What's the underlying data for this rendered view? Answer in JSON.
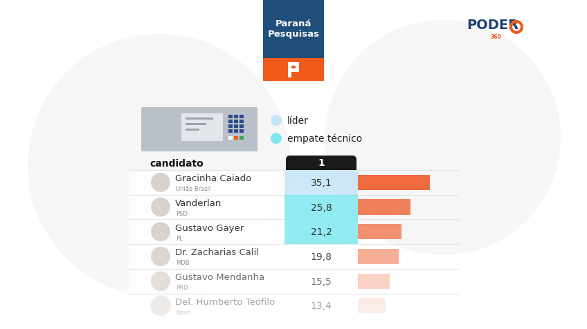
{
  "chart_data": {
    "type": "bar",
    "orientation": "horizontal",
    "title": "Paraná Pesquisas",
    "brand": "PODER",
    "brand_sub": "360",
    "column_header": "candidato",
    "round_label": "1",
    "categories": [
      "Gracinha Caiado",
      "Vanderlan",
      "Gustavo Gayer",
      "Dr. Zacharias Calil",
      "Gustavo Mendanha",
      "Del. Humberto Teófilo"
    ],
    "parties": [
      "União Brasil",
      "PSD",
      "PL",
      "MDB",
      "PRD",
      "Novo"
    ],
    "values": [
      35.1,
      25.8,
      21.2,
      19.8,
      15.5,
      13.4
    ],
    "value_labels": [
      "35,1",
      "25,8",
      "21,2",
      "19,8",
      "15,5",
      "13,4"
    ],
    "data_labels": true,
    "colors": [
      "#ef6a3e",
      "#f0805a",
      "#f29070",
      "#f4a68c",
      "#f7bfad",
      "#fad6ca"
    ],
    "legend_entries": [
      {
        "name": "líder",
        "color": "#c5e4f7"
      },
      {
        "name": "empate técnico",
        "color": "#7ee8f0"
      }
    ],
    "highlight": [
      "líder",
      "empate técnico",
      "empate técnico",
      null,
      null,
      null
    ],
    "xlim": [
      0,
      50
    ],
    "tick_labels": false
  }
}
